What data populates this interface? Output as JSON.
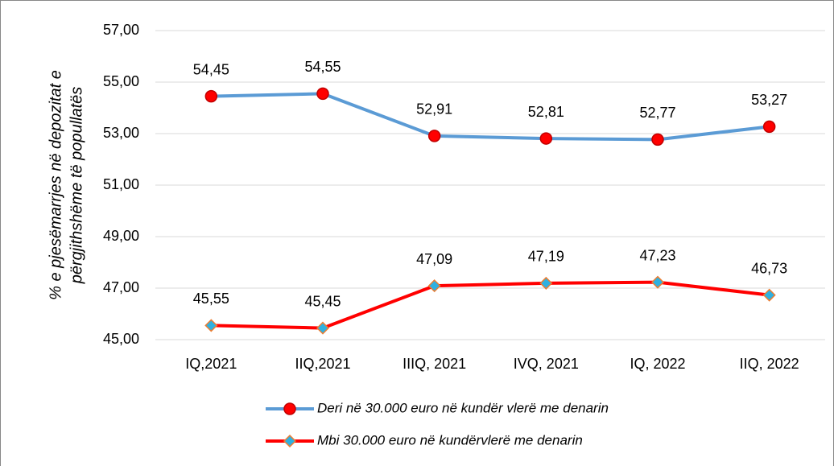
{
  "chart_data": {
    "type": "line",
    "ylabel": [
      "% e pjesëmarrjes në depozitat e",
      "përgjithshëme të popullatës"
    ],
    "categories": [
      "IQ,2021",
      "IIQ,2021",
      "IIIQ, 2021",
      "IVQ, 2021",
      "IQ, 2022",
      "IIQ, 2022"
    ],
    "series": [
      {
        "name": "Deri në  30.000 euro në kundër vlerë me denarin",
        "color": "#5b9bd5",
        "marker": "circle",
        "marker_fill": "#ff0000",
        "marker_stroke": "#c00000",
        "values": [
          54.45,
          54.55,
          52.91,
          52.81,
          52.77,
          53.27
        ],
        "value_labels": [
          "54,45",
          "54,55",
          "52,91",
          "52,81",
          "52,77",
          "53,27"
        ]
      },
      {
        "name": "Mbi 30.000 euro në kundërvlerë me denarin",
        "color": "#ff0000",
        "marker": "diamond",
        "marker_fill": "#2fb0e0",
        "marker_stroke": "#ed7d31",
        "values": [
          45.55,
          45.45,
          47.09,
          47.19,
          47.23,
          46.73
        ],
        "value_labels": [
          "45,55",
          "45,45",
          "47,09",
          "47,19",
          "47,23",
          "46,73"
        ]
      }
    ],
    "ylim": [
      45,
      57
    ],
    "yticks": [
      {
        "value": 45,
        "label": "45,00"
      },
      {
        "value": 47,
        "label": "47,00"
      },
      {
        "value": 49,
        "label": "49,00"
      },
      {
        "value": 51,
        "label": "51,00"
      },
      {
        "value": 53,
        "label": "53,00"
      },
      {
        "value": 55,
        "label": "55,00"
      },
      {
        "value": 57,
        "label": "57,00"
      }
    ],
    "grid": true,
    "legend": "bottom"
  }
}
